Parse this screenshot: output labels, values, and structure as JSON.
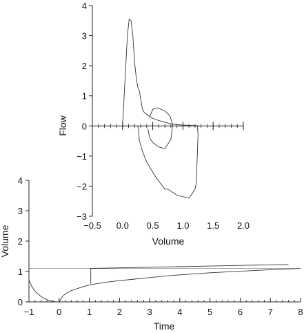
{
  "chart_data": [
    {
      "id": "flow_volume",
      "type": "line",
      "xlabel": "Volume",
      "ylabel": "Flow",
      "xlim": [
        -0.5,
        2.0
      ],
      "ylim": [
        -3,
        4
      ],
      "xticks_major": [
        -0.5,
        0.0,
        0.5,
        1.0,
        1.5,
        2.0
      ],
      "xtick_labels": [
        "−0.5",
        "0.0",
        "0.5",
        "1.0",
        "1.5",
        "2.0"
      ],
      "xticks_minor_step": 0.1,
      "yticks": [
        -3,
        -2,
        -1,
        0,
        1,
        2,
        3,
        4
      ],
      "ytick_labels": [
        "−3",
        "−2",
        "−1",
        "0",
        "1",
        "2",
        "3",
        "4"
      ],
      "grid": false,
      "series": [
        {
          "points": [
            [
              0.0,
              0.0
            ],
            [
              0.04,
              1.5
            ],
            [
              0.08,
              3.0
            ],
            [
              0.11,
              3.55
            ],
            [
              0.14,
              3.5
            ],
            [
              0.17,
              3.0
            ],
            [
              0.2,
              2.1
            ],
            [
              0.23,
              1.55
            ],
            [
              0.25,
              1.3
            ],
            [
              0.28,
              1.15
            ],
            [
              0.3,
              0.9
            ],
            [
              0.33,
              0.55
            ],
            [
              0.36,
              0.45
            ],
            [
              0.42,
              0.35
            ],
            [
              0.5,
              0.25
            ],
            [
              0.6,
              0.18
            ],
            [
              0.7,
              0.12
            ],
            [
              0.8,
              0.07
            ],
            [
              0.9,
              0.04
            ],
            [
              1.0,
              0.03
            ],
            [
              1.1,
              0.02
            ],
            [
              1.24,
              0.01
            ],
            [
              1.25,
              -0.3
            ],
            [
              1.22,
              -1.9
            ],
            [
              1.2,
              -2.1
            ],
            [
              1.1,
              -2.4
            ],
            [
              0.9,
              -2.3
            ],
            [
              0.75,
              -2.1
            ],
            [
              0.7,
              -2.1
            ],
            [
              0.55,
              -1.7
            ],
            [
              0.4,
              -1.2
            ],
            [
              0.33,
              -0.85
            ],
            [
              0.28,
              -0.5
            ],
            [
              0.26,
              -0.1
            ],
            [
              0.25,
              0.0
            ]
          ]
        },
        {
          "points": [
            [
              0.45,
              0.3
            ],
            [
              0.5,
              0.55
            ],
            [
              0.58,
              0.6
            ],
            [
              0.7,
              0.5
            ],
            [
              0.78,
              0.35
            ],
            [
              0.83,
              0.05
            ],
            [
              0.8,
              -0.45
            ],
            [
              0.7,
              -0.75
            ],
            [
              0.6,
              -0.7
            ],
            [
              0.5,
              -0.55
            ],
            [
              0.45,
              -0.4
            ],
            [
              0.42,
              -0.1
            ]
          ]
        }
      ]
    },
    {
      "id": "volume_time",
      "type": "line",
      "xlabel": "Time",
      "ylabel": "Volume",
      "xlim": [
        -1,
        8
      ],
      "ylim": [
        0,
        4
      ],
      "xticks": [
        -1,
        0,
        1,
        2,
        3,
        4,
        5,
        6,
        7,
        8
      ],
      "xtick_labels": [
        "−1",
        "0",
        "1",
        "2",
        "3",
        "4",
        "5",
        "6",
        "7",
        "8"
      ],
      "xticks_minor_step": 0.2,
      "yticks": [
        0,
        1,
        2,
        3,
        4
      ],
      "ytick_labels": [
        "0",
        "1",
        "2",
        "3",
        "4"
      ],
      "grid": false,
      "reference_line_y": 1.1,
      "series": [
        {
          "points": [
            [
              -1.0,
              0.72
            ],
            [
              -0.9,
              0.5
            ],
            [
              -0.8,
              0.35
            ],
            [
              -0.6,
              0.18
            ],
            [
              -0.4,
              0.07
            ],
            [
              -0.2,
              0.01
            ],
            [
              0.0,
              0.0
            ],
            [
              0.05,
              0.08
            ],
            [
              0.1,
              0.17
            ],
            [
              0.2,
              0.26
            ],
            [
              0.4,
              0.37
            ],
            [
              0.7,
              0.47
            ],
            [
              1.0,
              0.56
            ],
            [
              1.5,
              0.64
            ],
            [
              2.0,
              0.7
            ],
            [
              2.5,
              0.75
            ],
            [
              3.0,
              0.8
            ],
            [
              3.5,
              0.85
            ],
            [
              4.0,
              0.89
            ],
            [
              5.0,
              0.96
            ],
            [
              6.0,
              1.01
            ],
            [
              7.0,
              1.06
            ],
            [
              8.0,
              1.1
            ]
          ]
        },
        {
          "points": [
            [
              1.05,
              0.6
            ],
            [
              1.05,
              1.1
            ],
            [
              2.0,
              1.12
            ],
            [
              3.0,
              1.14
            ],
            [
              4.0,
              1.16
            ],
            [
              5.0,
              1.18
            ],
            [
              6.0,
              1.2
            ],
            [
              7.0,
              1.22
            ],
            [
              7.6,
              1.23
            ]
          ]
        }
      ]
    }
  ]
}
